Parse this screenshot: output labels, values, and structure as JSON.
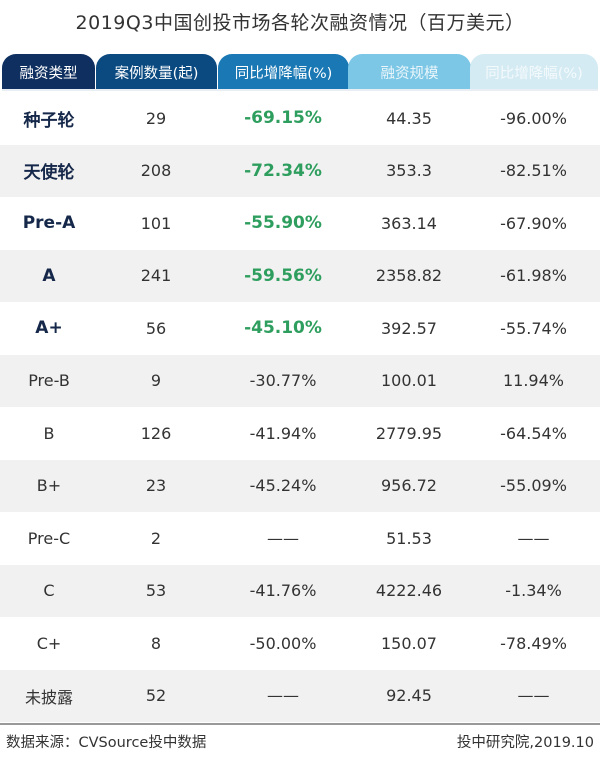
{
  "title": "2019Q3中国创投市场各轮次融资情况（百万美元）",
  "columns": [
    {
      "label": "融资类型",
      "bg": "#0e2f5f",
      "color": "#ffffff"
    },
    {
      "label": "案例数量(起)",
      "bg": "#0b4a80",
      "color": "#ffffff"
    },
    {
      "label": "同比增降幅(%)",
      "bg": "#1a78b4",
      "color": "#ffffff"
    },
    {
      "label": "融资规模",
      "bg": "#7cc7e6",
      "color": "#eaf6fb"
    },
    {
      "label": "同比增降幅(%)",
      "bg": "#d5ebf3",
      "color": "#f4fafc"
    }
  ],
  "rows": [
    {
      "type": "种子轮",
      "count": "29",
      "count_yoy": "-69.15%",
      "amount": "44.35",
      "amount_yoy": "-96.00%",
      "highlight": true
    },
    {
      "type": "天使轮",
      "count": "208",
      "count_yoy": "-72.34%",
      "amount": "353.3",
      "amount_yoy": "-82.51%",
      "highlight": true
    },
    {
      "type": "Pre-A",
      "count": "101",
      "count_yoy": "-55.90%",
      "amount": "363.14",
      "amount_yoy": "-67.90%",
      "highlight": true
    },
    {
      "type": "A",
      "count": "241",
      "count_yoy": "-59.56%",
      "amount": "2358.82",
      "amount_yoy": "-61.98%",
      "highlight": true
    },
    {
      "type": "A+",
      "count": "56",
      "count_yoy": "-45.10%",
      "amount": "392.57",
      "amount_yoy": "-55.74%",
      "highlight": true
    },
    {
      "type": "Pre-B",
      "count": "9",
      "count_yoy": "-30.77%",
      "amount": "100.01",
      "amount_yoy": "11.94%",
      "highlight": false
    },
    {
      "type": "B",
      "count": "126",
      "count_yoy": "-41.94%",
      "amount": "2779.95",
      "amount_yoy": "-64.54%",
      "highlight": false
    },
    {
      "type": "B+",
      "count": "23",
      "count_yoy": "-45.24%",
      "amount": "956.72",
      "amount_yoy": "-55.09%",
      "highlight": false
    },
    {
      "type": "Pre-C",
      "count": "2",
      "count_yoy": "——",
      "amount": "51.53",
      "amount_yoy": "——",
      "highlight": false
    },
    {
      "type": "C",
      "count": "53",
      "count_yoy": "-41.76%",
      "amount": "4222.46",
      "amount_yoy": "-1.34%",
      "highlight": false
    },
    {
      "type": "C+",
      "count": "8",
      "count_yoy": "-50.00%",
      "amount": "150.07",
      "amount_yoy": "-78.49%",
      "highlight": false
    },
    {
      "type": "未披露",
      "count": "52",
      "count_yoy": "——",
      "amount": "92.45",
      "amount_yoy": "——",
      "highlight": false
    }
  ],
  "footer": {
    "source": "数据来源：CVSource投中数据",
    "credit": "投中研究院,2019.10"
  },
  "colors": {
    "highlight_green": "#2e9e5e",
    "highlight_name": "#15284a",
    "row_alt": "#f1f1f1"
  },
  "chart_data": {
    "type": "table",
    "title": "2019Q3中国创投市场各轮次融资情况（百万美元）",
    "columns": [
      "融资类型",
      "案例数量(起)",
      "同比增降幅(%)",
      "融资规模",
      "同比增降幅(%)"
    ],
    "rows": [
      [
        "种子轮",
        29,
        -69.15,
        44.35,
        -96.0
      ],
      [
        "天使轮",
        208,
        -72.34,
        353.3,
        -82.51
      ],
      [
        "Pre-A",
        101,
        -55.9,
        363.14,
        -67.9
      ],
      [
        "A",
        241,
        -59.56,
        2358.82,
        -61.98
      ],
      [
        "A+",
        56,
        -45.1,
        392.57,
        -55.74
      ],
      [
        "Pre-B",
        9,
        -30.77,
        100.01,
        11.94
      ],
      [
        "B",
        126,
        -41.94,
        2779.95,
        -64.54
      ],
      [
        "B+",
        23,
        -45.24,
        956.72,
        -55.09
      ],
      [
        "Pre-C",
        2,
        null,
        51.53,
        null
      ],
      [
        "C",
        53,
        -41.76,
        4222.46,
        -1.34
      ],
      [
        "C+",
        8,
        -50.0,
        150.07,
        -78.49
      ],
      [
        "未披露",
        52,
        null,
        92.45,
        null
      ]
    ],
    "unit": "百万美元",
    "source": "数据来源：CVSource投中数据",
    "credit": "投中研究院,2019.10"
  }
}
